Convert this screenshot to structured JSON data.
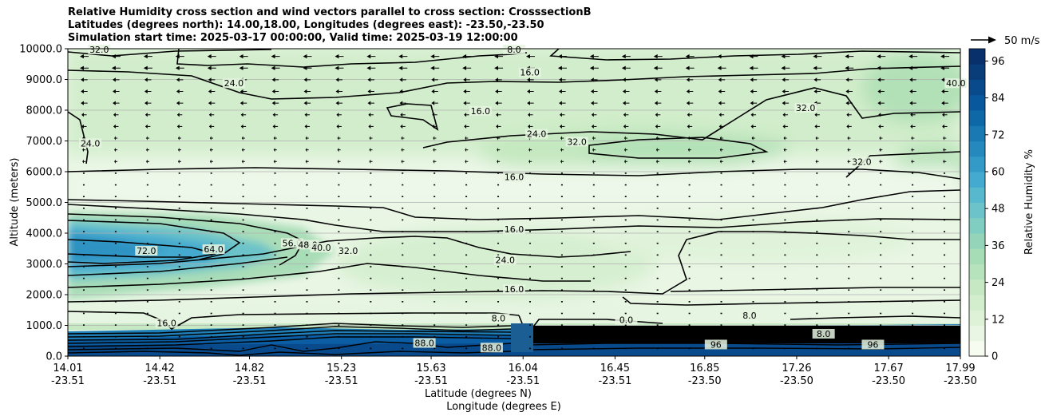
{
  "title_lines": [
    "Relative Humidity cross section and wind vectors parallel to cross section: CrosssectionB",
    "Latitudes (degrees north): 14.00,18.00, Longitudes (degrees east): -23.50,-23.50",
    "Simulation start time: 2025-03-17 00:00:00, Valid time: 2025-03-19 12:00:00"
  ],
  "quiver_key_label": "50 m/s",
  "colorbar": {
    "label": "Relative Humidity %",
    "ticks": [
      0,
      12,
      24,
      36,
      48,
      60,
      72,
      84,
      96
    ],
    "range": [
      0,
      100
    ],
    "colors": [
      "#f7fcf0",
      "#eaf6e4",
      "#def2d8",
      "#d3eecd",
      "#c6e9c3",
      "#b6e3bc",
      "#a7ddb6",
      "#94d5ba",
      "#80cdc1",
      "#6cc3c9",
      "#58b8cd",
      "#44aacf",
      "#3399c6",
      "#2689bd",
      "#1a79b3",
      "#0e68a8",
      "#08589e",
      "#084a8c",
      "#083d7a",
      "#08306b"
    ]
  },
  "chart_data": {
    "type": "heatmap",
    "title": "Relative Humidity cross section and wind vectors parallel to cross section: CrosssectionB",
    "xlabel": "Latitude (degrees N)",
    "xlabel2": "Longitude (degrees E)",
    "ylabel": "Altitude (meters)",
    "ylim": [
      0,
      10000
    ],
    "xlim": [
      14.01,
      17.99
    ],
    "yticks": [
      "0.0",
      "1000.0",
      "2000.0",
      "3000.0",
      "4000.0",
      "5000.0",
      "6000.0",
      "7000.0",
      "8000.0",
      "9000.0",
      "10000.0"
    ],
    "xticks_lat": [
      "14.01",
      "14.42",
      "14.82",
      "15.23",
      "15.63",
      "16.04",
      "16.45",
      "16.85",
      "17.26",
      "17.67",
      "17.99"
    ],
    "xticks_lon": [
      "-23.51",
      "-23.51",
      "-23.51",
      "-23.51",
      "-23.51",
      "-23.51",
      "-23.51",
      "-23.50",
      "-23.50",
      "-23.50",
      "-23.50"
    ],
    "grid": true,
    "contour_labels": [
      {
        "text": "32.0",
        "lat": 14.15,
        "alt": 9900
      },
      {
        "text": "8.0",
        "lat": 16.0,
        "alt": 9900
      },
      {
        "text": "24.0",
        "lat": 14.75,
        "alt": 8800
      },
      {
        "text": "16.0",
        "lat": 16.07,
        "alt": 9150
      },
      {
        "text": "16.0",
        "lat": 15.85,
        "alt": 7900
      },
      {
        "text": "24.0",
        "lat": 14.11,
        "alt": 6850
      },
      {
        "text": "24.0",
        "lat": 16.1,
        "alt": 7150
      },
      {
        "text": "32.0",
        "lat": 16.28,
        "alt": 6900
      },
      {
        "text": "32.0",
        "lat": 17.3,
        "alt": 8000
      },
      {
        "text": "40.0",
        "lat": 17.97,
        "alt": 8800
      },
      {
        "text": "32.0",
        "lat": 17.55,
        "alt": 6250
      },
      {
        "text": "16.0",
        "lat": 16.0,
        "alt": 5750
      },
      {
        "text": "16.0",
        "lat": 16.0,
        "alt": 4050
      },
      {
        "text": "24.0",
        "lat": 15.96,
        "alt": 3050
      },
      {
        "text": "16.0",
        "lat": 16.0,
        "alt": 2100
      },
      {
        "text": "72.0",
        "lat": 14.36,
        "alt": 3350
      },
      {
        "text": "64.0",
        "lat": 14.66,
        "alt": 3400
      },
      {
        "text": "56.0",
        "lat": 15.01,
        "alt": 3600
      },
      {
        "text": "48.0",
        "lat": 15.08,
        "alt": 3550
      },
      {
        "text": "40.0",
        "lat": 15.14,
        "alt": 3450
      },
      {
        "text": "32.0",
        "lat": 15.26,
        "alt": 3350
      },
      {
        "text": "16.0",
        "lat": 14.45,
        "alt": 1000
      },
      {
        "text": "8.0",
        "lat": 15.93,
        "alt": 1150
      },
      {
        "text": "0.0",
        "lat": 16.5,
        "alt": 1100
      },
      {
        "text": "8.0",
        "lat": 17.05,
        "alt": 1250
      },
      {
        "text": "8.0",
        "lat": 17.38,
        "alt": 650
      },
      {
        "text": "96",
        "lat": 16.9,
        "alt": 300
      },
      {
        "text": "96",
        "lat": 17.6,
        "alt": 300
      },
      {
        "text": "88.0",
        "lat": 15.9,
        "alt": 200
      },
      {
        "text": "88.0",
        "lat": 15.6,
        "alt": 350
      }
    ]
  }
}
